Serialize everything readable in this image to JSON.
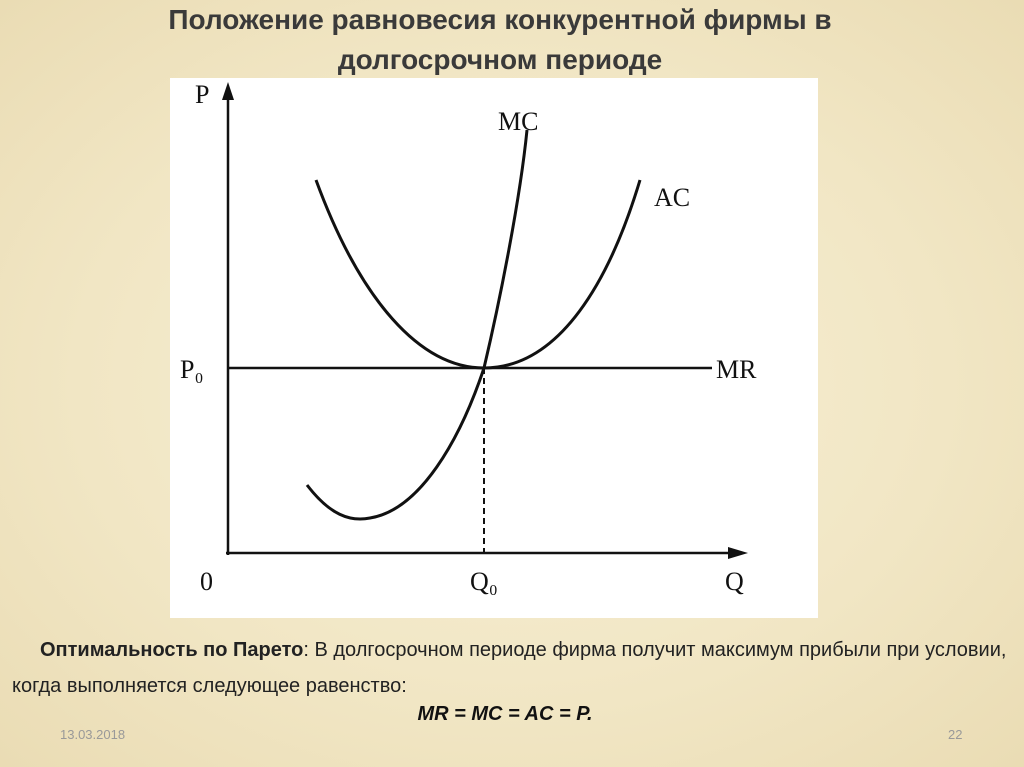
{
  "title_lines": [
    "Положение равновесия конкурентной фирмы в",
    "долгосрочном периоде"
  ],
  "diagram": {
    "y_axis_label": "P",
    "x_axis_label": "Q",
    "origin_label": "0",
    "price_label": "P₀",
    "quantity_label": "Q₀",
    "mc_label": "MC",
    "ac_label": "AC",
    "mr_label": "MR"
  },
  "text": {
    "bold": "Оптимальность по Парето",
    "body": ": В долгосрочном периоде фирма получит максимум прибыли при условии, когда выполняется следующее равенство:",
    "formula": "MR = MC = AC = P."
  },
  "footer": {
    "date": "13.03.2018",
    "page": "22"
  }
}
